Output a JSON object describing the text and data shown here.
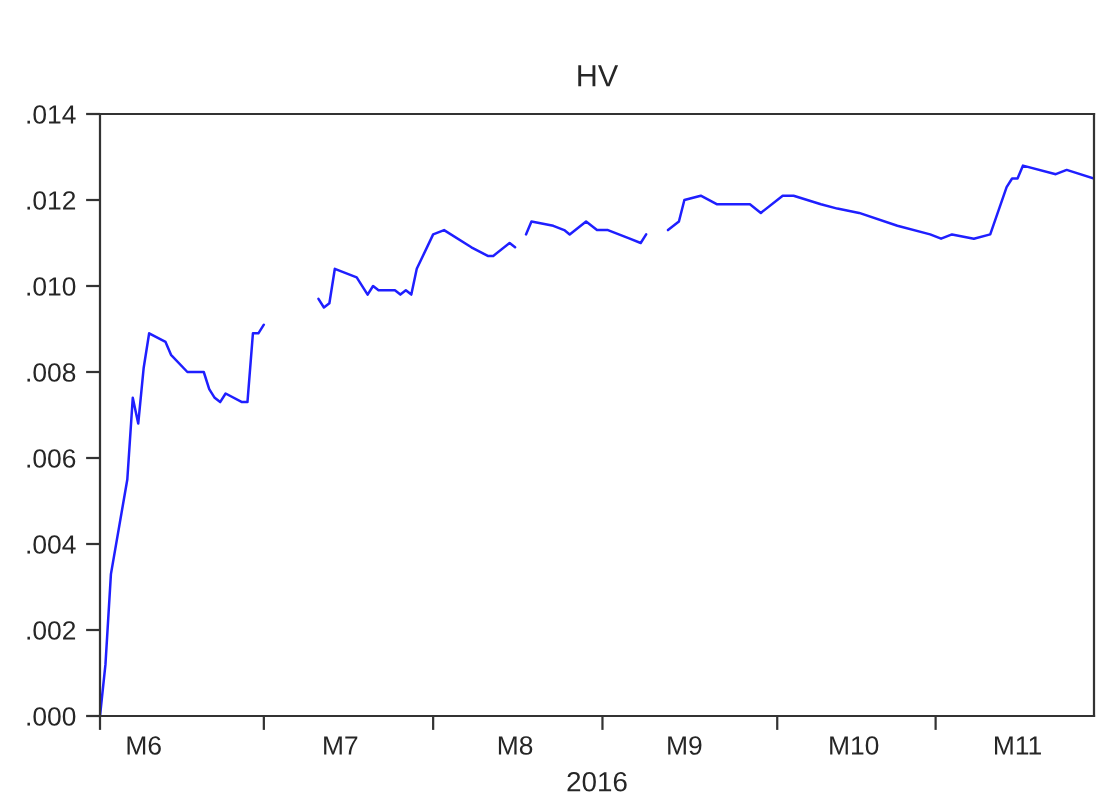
{
  "chart_data": {
    "type": "line",
    "title": "HV",
    "xlabel": "2016",
    "x": [
      "2016-06-01",
      "2016-06-02",
      "2016-06-03",
      "2016-06-06",
      "2016-06-07",
      "2016-06-08",
      "2016-06-09",
      "2016-06-10",
      "2016-06-13",
      "2016-06-14",
      "2016-06-17",
      "2016-06-20",
      "2016-06-21",
      "2016-06-22",
      "2016-06-23",
      "2016-06-24",
      "2016-06-27",
      "2016-06-28",
      "2016-06-29",
      "2016-06-30",
      "2016-07-01",
      "2016-07-06",
      "2016-07-11",
      "2016-07-12",
      "2016-07-13",
      "2016-07-14",
      "2016-07-18",
      "2016-07-20",
      "2016-07-21",
      "2016-07-22",
      "2016-07-25",
      "2016-07-26",
      "2016-07-27",
      "2016-07-28",
      "2016-07-29",
      "2016-08-01",
      "2016-08-03",
      "2016-08-08",
      "2016-08-11",
      "2016-08-12",
      "2016-08-15",
      "2016-08-16",
      "2016-08-17",
      "2016-08-18",
      "2016-08-19",
      "2016-08-23",
      "2016-08-25",
      "2016-08-26",
      "2016-08-29",
      "2016-08-31",
      "2016-09-02",
      "2016-09-06",
      "2016-09-08",
      "2016-09-09",
      "2016-09-12",
      "2016-09-13",
      "2016-09-15",
      "2016-09-16",
      "2016-09-19",
      "2016-09-22",
      "2016-09-28",
      "2016-09-30",
      "2016-10-04",
      "2016-10-06",
      "2016-10-11",
      "2016-10-14",
      "2016-10-18",
      "2016-10-25",
      "2016-10-31",
      "2016-11-02",
      "2016-11-04",
      "2016-11-08",
      "2016-11-11",
      "2016-11-14",
      "2016-11-15",
      "2016-11-16",
      "2016-11-17",
      "2016-11-23",
      "2016-11-25",
      "2016-11-30"
    ],
    "series": [
      {
        "color": "#1f1fff",
        "values": [
          0.0,
          0.0012,
          0.0033,
          0.0055,
          0.0074,
          0.0068,
          0.0081,
          0.0089,
          0.0087,
          0.0084,
          0.008,
          0.008,
          0.0076,
          0.0074,
          0.0073,
          0.0075,
          0.0073,
          0.0073,
          0.0089,
          0.0089,
          0.0091,
          null,
          0.0097,
          0.0095,
          0.0096,
          0.0104,
          0.0102,
          0.0098,
          0.01,
          0.0099,
          0.0099,
          0.0098,
          0.0099,
          0.0098,
          0.0104,
          0.0112,
          0.0113,
          0.0109,
          0.0107,
          0.0107,
          0.011,
          0.0109,
          null,
          0.0112,
          0.0115,
          0.0114,
          0.0113,
          0.0112,
          0.0115,
          0.0113,
          0.0113,
          0.0111,
          0.011,
          0.0112,
          null,
          0.0113,
          0.0115,
          0.012,
          0.0121,
          0.0119,
          0.0119,
          0.0117,
          0.0121,
          0.0121,
          0.0119,
          0.0118,
          0.0117,
          0.0114,
          0.0112,
          0.0111,
          0.0112,
          0.0111,
          0.0112,
          0.0123,
          0.0125,
          0.0125,
          0.0128,
          0.0126,
          0.0127,
          0.0125
        ]
      }
    ],
    "xlim": [
      "2016-06-01",
      "2016-11-30"
    ],
    "xticks": [
      {
        "value": "2016-06-01",
        "label": null
      },
      {
        "value": "2016-07-01",
        "label": null
      },
      {
        "value": "2016-08-01",
        "label": null
      },
      {
        "value": "2016-09-01",
        "label": null
      },
      {
        "value": "2016-10-03",
        "label": null
      },
      {
        "value": "2016-11-01",
        "label": null
      },
      {
        "value": "2016-06-09",
        "label": "M6"
      },
      {
        "value": "2016-07-15",
        "label": "M7"
      },
      {
        "value": "2016-08-16",
        "label": "M8"
      },
      {
        "value": "2016-09-16",
        "label": "M9"
      },
      {
        "value": "2016-10-17",
        "label": "M10"
      },
      {
        "value": "2016-11-16",
        "label": "M11"
      }
    ],
    "ylim": [
      0,
      0.014
    ],
    "yticks": [
      {
        "value": 0,
        "label": ".000"
      },
      {
        "value": 0.002,
        "label": ".002"
      },
      {
        "value": 0.004,
        "label": ".004"
      },
      {
        "value": 0.006,
        "label": ".006"
      },
      {
        "value": 0.008,
        "label": ".008"
      },
      {
        "value": 0.01,
        "label": ".010"
      },
      {
        "value": 0.012,
        "label": ".012"
      },
      {
        "value": 0.014,
        "label": ".014"
      }
    ],
    "grid": false,
    "legend": false
  }
}
